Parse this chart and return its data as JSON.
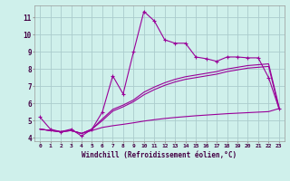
{
  "xlabel": "Windchill (Refroidissement éolien,°C)",
  "background_color": "#cff0eb",
  "line_color": "#990099",
  "grid_color": "#aacccc",
  "xlim": [
    -0.5,
    23.5
  ],
  "ylim": [
    3.8,
    11.7
  ],
  "yticks": [
    4,
    5,
    6,
    7,
    8,
    9,
    10,
    11
  ],
  "xticks": [
    0,
    1,
    2,
    3,
    4,
    5,
    6,
    7,
    8,
    9,
    10,
    11,
    12,
    13,
    14,
    15,
    16,
    17,
    18,
    19,
    20,
    21,
    22,
    23
  ],
  "line1_x": [
    0,
    1,
    2,
    3,
    4,
    5,
    6,
    7,
    8,
    9,
    10,
    11,
    12,
    13,
    14,
    15,
    16,
    17,
    18,
    19,
    20,
    21,
    22,
    23
  ],
  "line1_y": [
    5.2,
    4.5,
    4.35,
    4.5,
    4.1,
    4.5,
    5.5,
    7.6,
    6.55,
    9.0,
    11.35,
    10.8,
    9.7,
    9.5,
    9.5,
    8.7,
    8.6,
    8.45,
    8.7,
    8.7,
    8.65,
    8.65,
    7.5,
    5.7
  ],
  "line2_x": [
    0,
    1,
    2,
    3,
    4,
    5,
    6,
    7,
    8,
    9,
    10,
    11,
    12,
    13,
    14,
    15,
    16,
    17,
    18,
    19,
    20,
    21,
    22,
    23
  ],
  "line2_y": [
    4.5,
    4.42,
    4.35,
    4.42,
    4.25,
    4.5,
    5.0,
    5.55,
    5.8,
    6.1,
    6.5,
    6.8,
    7.05,
    7.25,
    7.4,
    7.5,
    7.6,
    7.7,
    7.85,
    7.95,
    8.05,
    8.1,
    8.15,
    5.7
  ],
  "line3_x": [
    0,
    1,
    2,
    3,
    4,
    5,
    6,
    7,
    8,
    9,
    10,
    11,
    12,
    13,
    14,
    15,
    16,
    17,
    18,
    19,
    20,
    21,
    22,
    23
  ],
  "line3_y": [
    4.5,
    4.42,
    4.35,
    4.42,
    4.25,
    4.5,
    5.1,
    5.65,
    5.9,
    6.2,
    6.65,
    6.95,
    7.2,
    7.4,
    7.55,
    7.65,
    7.75,
    7.85,
    8.0,
    8.1,
    8.2,
    8.25,
    8.3,
    5.8
  ],
  "line4_x": [
    0,
    1,
    2,
    3,
    4,
    5,
    6,
    7,
    8,
    9,
    10,
    11,
    12,
    13,
    14,
    15,
    16,
    17,
    18,
    19,
    20,
    21,
    22,
    23
  ],
  "line4_y": [
    4.5,
    4.42,
    4.35,
    4.42,
    4.25,
    4.42,
    4.6,
    4.7,
    4.78,
    4.87,
    4.97,
    5.05,
    5.12,
    5.18,
    5.23,
    5.28,
    5.32,
    5.36,
    5.4,
    5.43,
    5.46,
    5.49,
    5.52,
    5.7
  ]
}
